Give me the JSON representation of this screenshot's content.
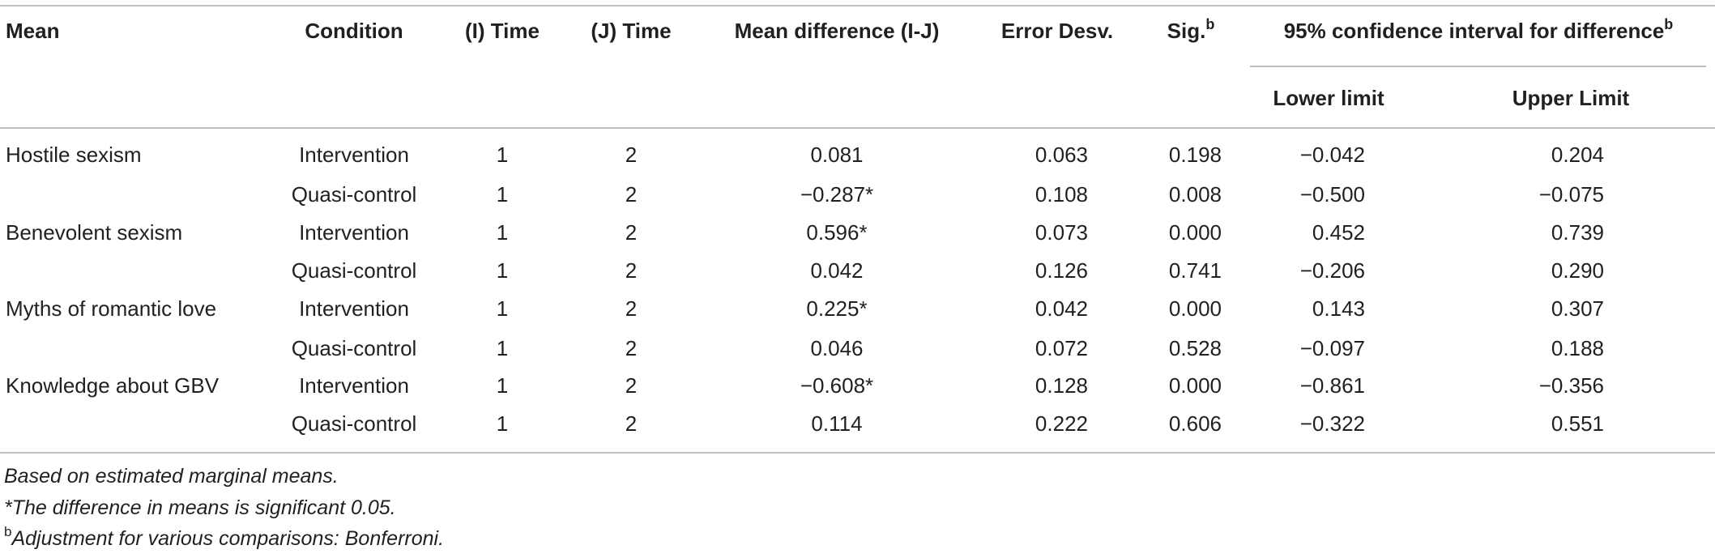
{
  "table": {
    "headers": [
      "Mean",
      "Condition",
      "(I) Time",
      "(J) Time",
      "Mean difference (I-J)",
      "Error Desv.",
      {
        "text": "Sig.",
        "sup": "b"
      },
      {
        "text": "95% confidence interval for difference",
        "sup": "b"
      }
    ],
    "subheaders": [
      "Lower limit",
      "Upper Limit"
    ],
    "rows": [
      [
        "Hostile sexism",
        "Intervention",
        "1",
        "2",
        "0.081",
        "0.063",
        "0.198",
        "−0.042",
        "0.204"
      ],
      [
        "",
        "Quasi-control",
        "1",
        "2",
        "−0.287*",
        "0.108",
        "0.008",
        "−0.500",
        "−0.075"
      ],
      [
        "Benevolent sexism",
        "Intervention",
        "1",
        "2",
        "0.596*",
        "0.073",
        "0.000",
        "0.452",
        "0.739"
      ],
      [
        "",
        "Quasi-control",
        "1",
        "2",
        "0.042",
        "0.126",
        "0.741",
        "−0.206",
        "0.290"
      ],
      [
        "Myths of romantic love",
        "Intervention",
        "1",
        "2",
        "0.225*",
        "0.042",
        "0.000",
        "0.143",
        "0.307"
      ],
      [
        "",
        "Quasi-control",
        "1",
        "2",
        "0.046",
        "0.072",
        "0.528",
        "−0.097",
        "0.188"
      ],
      [
        "Knowledge about GBV",
        "Intervention",
        "1",
        "2",
        "−0.608*",
        "0.128",
        "0.000",
        "−0.861",
        "−0.356"
      ],
      [
        "",
        "Quasi-control",
        "1",
        "2",
        "0.114",
        "0.222",
        "0.606",
        "−0.322",
        "0.551"
      ]
    ]
  },
  "notes": [
    {
      "text": "Based on estimated marginal means."
    },
    {
      "text": "*The difference in means is significant 0.05."
    },
    {
      "sup": "b",
      "text": "Adjustment for various comparisons: Bonferroni."
    }
  ]
}
